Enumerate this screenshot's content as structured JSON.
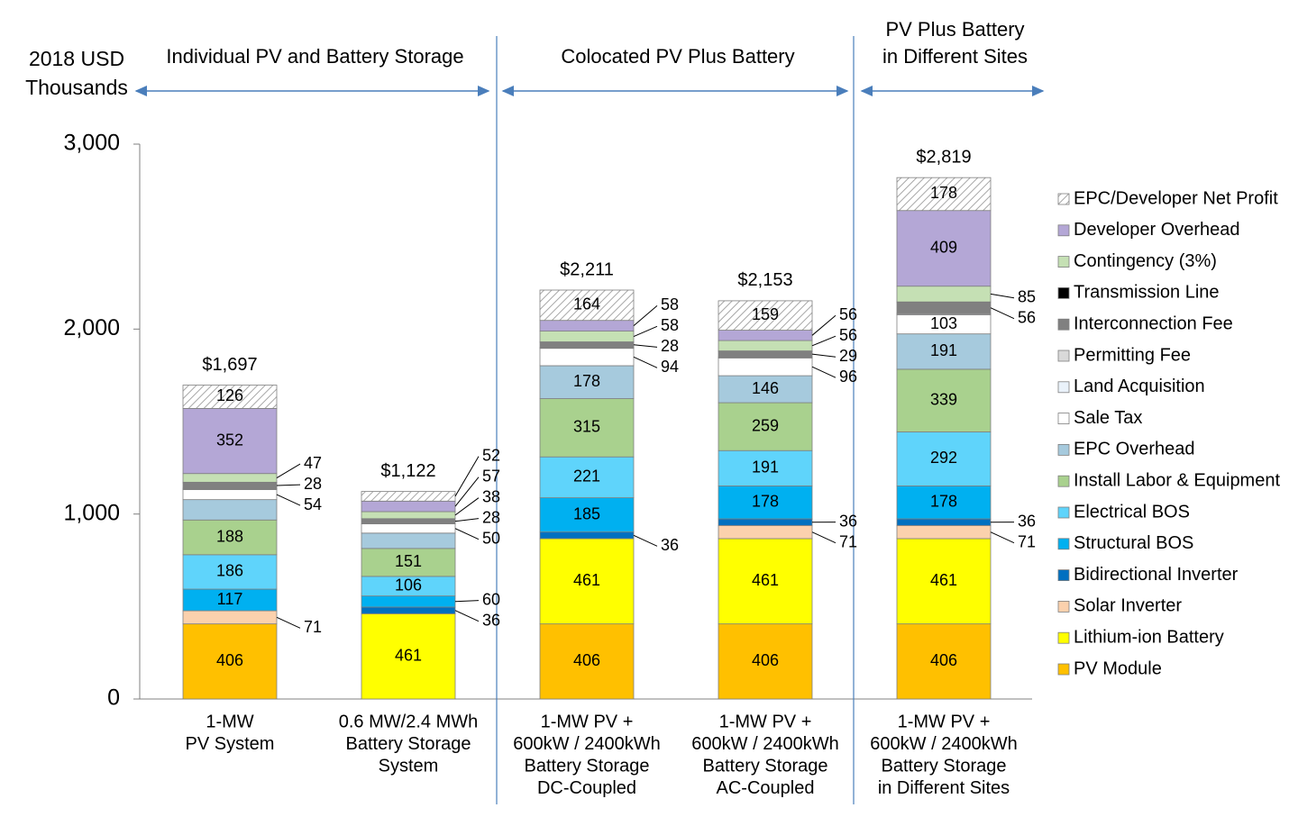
{
  "chart_data": {
    "type": "stacked_bar",
    "y_axis_label": [
      "2018 USD",
      "Thousands"
    ],
    "groups": [
      {
        "label": [
          "Individual PV and Battery Storage"
        ]
      },
      {
        "label": [
          "Colocated PV Plus Battery"
        ]
      },
      {
        "label": [
          "PV Plus Battery",
          "in Different Sites"
        ]
      }
    ],
    "categories": [
      [
        "1-MW",
        "PV System"
      ],
      [
        "0.6 MW/2.4 MWh",
        "Battery Storage",
        "System"
      ],
      [
        "1-MW PV +",
        "600kW / 2400kWh",
        "Battery Storage",
        "DC-Coupled"
      ],
      [
        "1-MW PV +",
        "600kW / 2400kWh",
        "Battery Storage",
        "AC-Coupled"
      ],
      [
        "1-MW PV +",
        "600kW / 2400kWh",
        "Battery Storage",
        "in Different Sites"
      ]
    ],
    "totals": [
      1697,
      1122,
      2211,
      2153,
      2819
    ],
    "total_labels": [
      "$1,697",
      "$1,122",
      "$2,211",
      "$2,153",
      "$2,819"
    ],
    "ylim": [
      0,
      3000
    ],
    "yticks": [
      {
        "value": 0,
        "label": "0"
      },
      {
        "value": 1000,
        "label": "1,000"
      },
      {
        "value": 2000,
        "label": "2,000"
      },
      {
        "value": 3000,
        "label": "3,000"
      }
    ],
    "series": [
      {
        "name": "PV Module",
        "color": "#ffc000",
        "values": [
          406,
          0,
          406,
          406,
          406
        ],
        "value_labels": [
          "406",
          null,
          "406",
          "406",
          "406"
        ]
      },
      {
        "name": "Lithium-ion Battery",
        "color": "#ffff00",
        "values": [
          0,
          461,
          461,
          461,
          461
        ],
        "value_labels": [
          null,
          "461",
          "461",
          "461",
          "461"
        ]
      },
      {
        "name": "Solar Inverter",
        "color": "#fbd1ad",
        "values": [
          71,
          0,
          0,
          71,
          71
        ],
        "value_labels": [
          "71",
          null,
          null,
          "71",
          "71"
        ]
      },
      {
        "name": "Bidirectional Inverter",
        "color": "#0070c0",
        "values": [
          0,
          36,
          36,
          36,
          36
        ],
        "value_labels": [
          null,
          "36",
          "36",
          "36",
          "36"
        ]
      },
      {
        "name": "Structural BOS",
        "color": "#00b0f0",
        "values": [
          117,
          60,
          185,
          178,
          178
        ],
        "value_labels": [
          "117",
          "60",
          "185",
          "178",
          "178"
        ]
      },
      {
        "name": "Electrical BOS",
        "color": "#5fd4fb",
        "values": [
          186,
          106,
          221,
          191,
          292
        ],
        "value_labels": [
          "186",
          "106",
          "221",
          "191",
          "292"
        ]
      },
      {
        "name": "Install Labor & Equipment",
        "color": "#a9d18e",
        "values": [
          188,
          151,
          315,
          259,
          339
        ],
        "value_labels": [
          "188",
          "151",
          "315",
          "259",
          "339"
        ]
      },
      {
        "name": "EPC Overhead",
        "color": "#a6cadd",
        "values": [
          110,
          83,
          178,
          146,
          191
        ],
        "value_labels": [
          null,
          null,
          "178",
          "146",
          "191"
        ]
      },
      {
        "name": "Sale Tax",
        "color": "#ffffff",
        "values": [
          54,
          50,
          94,
          96,
          103
        ],
        "value_labels": [
          "54",
          "50",
          "94",
          "96",
          "103"
        ]
      },
      {
        "name": "Land Acquisition",
        "color": "#eaf2fa",
        "values": [
          4,
          0,
          3,
          3,
          5
        ],
        "value_labels": [
          null,
          null,
          null,
          null,
          null
        ]
      },
      {
        "name": "Permitting Fee",
        "color": "#d9d9d9",
        "values": [
          4,
          0,
          2,
          3,
          5
        ],
        "value_labels": [
          null,
          null,
          null,
          null,
          null
        ]
      },
      {
        "name": "Interconnection Fee",
        "color": "#808080",
        "values": [
          28,
          28,
          28,
          29,
          56
        ],
        "value_labels": [
          "28",
          "28",
          "28",
          "29",
          "56"
        ]
      },
      {
        "name": "Transmission Line",
        "color": "#000000",
        "values": [
          4,
          0,
          2,
          3,
          4
        ],
        "value_labels": [
          null,
          null,
          null,
          null,
          null
        ]
      },
      {
        "name": "Contingency (3%)",
        "color": "#c5e0b4",
        "values": [
          47,
          38,
          58,
          56,
          85
        ],
        "value_labels": [
          "47",
          "38",
          "58",
          "56",
          "85"
        ]
      },
      {
        "name": "Developer Overhead",
        "color": "#b4a7d6",
        "values": [
          352,
          57,
          58,
          56,
          409
        ],
        "value_labels": [
          "352",
          "57",
          "58",
          "56",
          "409"
        ]
      },
      {
        "name": "EPC/Developer Net Profit",
        "color": "#bfbfbf",
        "hatch": true,
        "values": [
          126,
          52,
          164,
          159,
          178
        ],
        "value_labels": [
          "126",
          "52",
          "164",
          "159",
          "178"
        ]
      }
    ]
  }
}
